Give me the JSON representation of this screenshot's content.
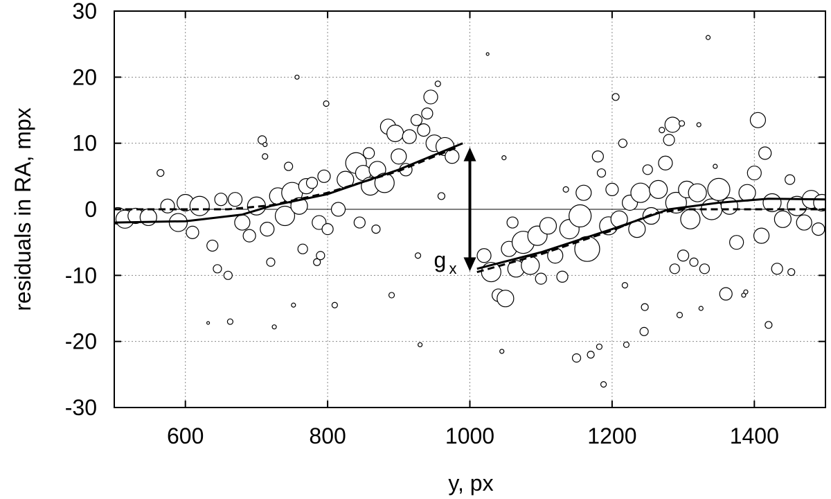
{
  "chart_data": {
    "type": "scatter",
    "title": "",
    "xlabel": "y, px",
    "ylabel": "residuals in RA, mpx",
    "xlim": [
      500,
      1500
    ],
    "ylim": [
      -30,
      30
    ],
    "x_ticks": [
      600,
      800,
      1000,
      1200,
      1400
    ],
    "y_ticks": [
      -30,
      -20,
      -10,
      0,
      10,
      20,
      30
    ],
    "x_tick_labels": [
      "600",
      "800",
      "1000",
      "1200",
      "1400"
    ],
    "y_tick_labels": [
      "-30",
      "-20",
      "-10",
      "0",
      "10",
      "20",
      "30"
    ],
    "grid": true,
    "annotation": {
      "text": "g",
      "subscript": "x",
      "arrow_x": 1000,
      "arrow_from": 10,
      "arrow_to": -10
    },
    "fit_solid": [
      {
        "x": 500,
        "y": -2.0
      },
      {
        "x": 600,
        "y": -1.8
      },
      {
        "x": 680,
        "y": -0.8
      },
      {
        "x": 720,
        "y": 0.5
      },
      {
        "x": 800,
        "y": 2.3
      },
      {
        "x": 900,
        "y": 6.0
      },
      {
        "x": 990,
        "y": 10.0
      },
      {
        "x": 1010,
        "y": -9.0
      },
      {
        "x": 1100,
        "y": -6.5
      },
      {
        "x": 1200,
        "y": -3.0
      },
      {
        "x": 1280,
        "y": 0.0
      },
      {
        "x": 1350,
        "y": 1.0
      },
      {
        "x": 1420,
        "y": 1.6
      },
      {
        "x": 1500,
        "y": 1.5
      }
    ],
    "fit_dashed": [
      {
        "x": 500,
        "y": 0.0
      },
      {
        "x": 660,
        "y": 0.0
      },
      {
        "x": 720,
        "y": 0.6
      },
      {
        "x": 800,
        "y": 2.5
      },
      {
        "x": 900,
        "y": 5.8
      },
      {
        "x": 980,
        "y": 9.3
      },
      {
        "x": 1010,
        "y": -9.5
      },
      {
        "x": 1100,
        "y": -6.8
      },
      {
        "x": 1200,
        "y": -3.2
      },
      {
        "x": 1260,
        "y": -0.6
      },
      {
        "x": 1300,
        "y": 0.0
      },
      {
        "x": 1500,
        "y": 0.0
      }
    ],
    "points": [
      {
        "x": 505,
        "y": -1,
        "w": 12
      },
      {
        "x": 515,
        "y": -1.5,
        "w": 13
      },
      {
        "x": 530,
        "y": -1,
        "w": 11
      },
      {
        "x": 548,
        "y": -1.2,
        "w": 12
      },
      {
        "x": 565,
        "y": 5.5,
        "w": 5
      },
      {
        "x": 575,
        "y": 0.5,
        "w": 10
      },
      {
        "x": 590,
        "y": -2,
        "w": 13
      },
      {
        "x": 600,
        "y": 1,
        "w": 12
      },
      {
        "x": 610,
        "y": -3.5,
        "w": 9
      },
      {
        "x": 620,
        "y": 0.5,
        "w": 14
      },
      {
        "x": 632,
        "y": -17.2,
        "w": 2
      },
      {
        "x": 638,
        "y": -5.5,
        "w": 8
      },
      {
        "x": 645,
        "y": -9,
        "w": 6
      },
      {
        "x": 650,
        "y": 1.5,
        "w": 9
      },
      {
        "x": 660,
        "y": -10,
        "w": 6
      },
      {
        "x": 663,
        "y": -17,
        "w": 4
      },
      {
        "x": 670,
        "y": 1.5,
        "w": 10
      },
      {
        "x": 680,
        "y": -2,
        "w": 11
      },
      {
        "x": 690,
        "y": -4,
        "w": 9
      },
      {
        "x": 700,
        "y": 0.5,
        "w": 13
      },
      {
        "x": 708,
        "y": 10.5,
        "w": 6
      },
      {
        "x": 712,
        "y": 8,
        "w": 4
      },
      {
        "x": 712,
        "y": 9.8,
        "w": 3
      },
      {
        "x": 715,
        "y": -3,
        "w": 10
      },
      {
        "x": 720,
        "y": -8,
        "w": 6
      },
      {
        "x": 725,
        "y": -17.8,
        "w": 3
      },
      {
        "x": 730,
        "y": 2,
        "w": 12
      },
      {
        "x": 740,
        "y": -1,
        "w": 14
      },
      {
        "x": 745,
        "y": 6.5,
        "w": 6
      },
      {
        "x": 750,
        "y": 2.5,
        "w": 15
      },
      {
        "x": 752,
        "y": -14.5,
        "w": 3
      },
      {
        "x": 757,
        "y": 20,
        "w": 3
      },
      {
        "x": 760,
        "y": 0.5,
        "w": 12
      },
      {
        "x": 765,
        "y": -6,
        "w": 7
      },
      {
        "x": 770,
        "y": 3.5,
        "w": 11
      },
      {
        "x": 778,
        "y": 4,
        "w": 8
      },
      {
        "x": 785,
        "y": -8,
        "w": 5
      },
      {
        "x": 788,
        "y": -2,
        "w": 10
      },
      {
        "x": 790,
        "y": -7,
        "w": 6
      },
      {
        "x": 795,
        "y": 5,
        "w": 9
      },
      {
        "x": 798,
        "y": 16,
        "w": 4
      },
      {
        "x": 800,
        "y": -3,
        "w": 8
      },
      {
        "x": 810,
        "y": -14.5,
        "w": 4
      },
      {
        "x": 815,
        "y": 0,
        "w": 10
      },
      {
        "x": 825,
        "y": 4.5,
        "w": 12
      },
      {
        "x": 840,
        "y": 7,
        "w": 15
      },
      {
        "x": 845,
        "y": -2,
        "w": 8
      },
      {
        "x": 850,
        "y": 5.5,
        "w": 11
      },
      {
        "x": 858,
        "y": 8.5,
        "w": 8
      },
      {
        "x": 860,
        "y": 3.5,
        "w": 13
      },
      {
        "x": 868,
        "y": -3,
        "w": 6
      },
      {
        "x": 870,
        "y": 6,
        "w": 12
      },
      {
        "x": 880,
        "y": 4,
        "w": 14
      },
      {
        "x": 885,
        "y": 12.5,
        "w": 11
      },
      {
        "x": 890,
        "y": -13,
        "w": 4
      },
      {
        "x": 895,
        "y": 11.5,
        "w": 12
      },
      {
        "x": 900,
        "y": 8,
        "w": 11
      },
      {
        "x": 910,
        "y": 6,
        "w": 9
      },
      {
        "x": 915,
        "y": 11,
        "w": 10
      },
      {
        "x": 925,
        "y": 13.5,
        "w": 8
      },
      {
        "x": 927,
        "y": -7,
        "w": 4
      },
      {
        "x": 930,
        "y": -20.5,
        "w": 3
      },
      {
        "x": 935,
        "y": 12,
        "w": 9
      },
      {
        "x": 940,
        "y": 14.5,
        "w": 8
      },
      {
        "x": 945,
        "y": 17,
        "w": 10
      },
      {
        "x": 950,
        "y": 10,
        "w": 12
      },
      {
        "x": 955,
        "y": 19,
        "w": 4
      },
      {
        "x": 960,
        "y": 2,
        "w": 5
      },
      {
        "x": 965,
        "y": 9.5,
        "w": 13
      },
      {
        "x": 975,
        "y": 8,
        "w": 10
      },
      {
        "x": 1020,
        "y": -7,
        "w": 10
      },
      {
        "x": 1025,
        "y": 23.5,
        "w": 2
      },
      {
        "x": 1030,
        "y": -9.5,
        "w": 14
      },
      {
        "x": 1040,
        "y": -13,
        "w": 9
      },
      {
        "x": 1045,
        "y": -21.5,
        "w": 3
      },
      {
        "x": 1048,
        "y": 7.8,
        "w": 3
      },
      {
        "x": 1050,
        "y": -13.5,
        "w": 12
      },
      {
        "x": 1055,
        "y": -6,
        "w": 11
      },
      {
        "x": 1060,
        "y": -2,
        "w": 8
      },
      {
        "x": 1065,
        "y": -9,
        "w": 12
      },
      {
        "x": 1075,
        "y": -5,
        "w": 16
      },
      {
        "x": 1085,
        "y": -8.5,
        "w": 13
      },
      {
        "x": 1095,
        "y": -4,
        "w": 14
      },
      {
        "x": 1100,
        "y": -10.5,
        "w": 8
      },
      {
        "x": 1110,
        "y": -2.5,
        "w": 12
      },
      {
        "x": 1120,
        "y": -7,
        "w": 11
      },
      {
        "x": 1130,
        "y": -10.2,
        "w": 8
      },
      {
        "x": 1135,
        "y": 3,
        "w": 4
      },
      {
        "x": 1140,
        "y": -3,
        "w": 14
      },
      {
        "x": 1150,
        "y": -22.5,
        "w": 6
      },
      {
        "x": 1155,
        "y": -1,
        "w": 16
      },
      {
        "x": 1160,
        "y": 2.5,
        "w": 11
      },
      {
        "x": 1165,
        "y": -6,
        "w": 18
      },
      {
        "x": 1170,
        "y": -22,
        "w": 5
      },
      {
        "x": 1180,
        "y": 8,
        "w": 8
      },
      {
        "x": 1182,
        "y": -20.8,
        "w": 4
      },
      {
        "x": 1185,
        "y": 5.5,
        "w": 6
      },
      {
        "x": 1188,
        "y": -26.5,
        "w": 4
      },
      {
        "x": 1195,
        "y": -2.5,
        "w": 13
      },
      {
        "x": 1200,
        "y": 3,
        "w": 9
      },
      {
        "x": 1205,
        "y": 17,
        "w": 5
      },
      {
        "x": 1210,
        "y": -1.5,
        "w": 12
      },
      {
        "x": 1215,
        "y": 10,
        "w": 6
      },
      {
        "x": 1218,
        "y": -11.5,
        "w": 4
      },
      {
        "x": 1220,
        "y": -20.5,
        "w": 4
      },
      {
        "x": 1225,
        "y": 1,
        "w": 11
      },
      {
        "x": 1235,
        "y": -3,
        "w": 12
      },
      {
        "x": 1240,
        "y": 2.5,
        "w": 14
      },
      {
        "x": 1245,
        "y": -18.5,
        "w": 6
      },
      {
        "x": 1246,
        "y": -14.8,
        "w": 5
      },
      {
        "x": 1250,
        "y": 6,
        "w": 7
      },
      {
        "x": 1255,
        "y": -1,
        "w": 12
      },
      {
        "x": 1265,
        "y": 3,
        "w": 13
      },
      {
        "x": 1270,
        "y": 12,
        "w": 4
      },
      {
        "x": 1275,
        "y": 7,
        "w": 10
      },
      {
        "x": 1280,
        "y": 10.5,
        "w": 8
      },
      {
        "x": 1285,
        "y": 12.8,
        "w": 11
      },
      {
        "x": 1288,
        "y": -9,
        "w": 7
      },
      {
        "x": 1290,
        "y": 1,
        "w": 15
      },
      {
        "x": 1295,
        "y": -16,
        "w": 4
      },
      {
        "x": 1298,
        "y": 13,
        "w": 4
      },
      {
        "x": 1300,
        "y": -7,
        "w": 8
      },
      {
        "x": 1305,
        "y": 3,
        "w": 12
      },
      {
        "x": 1310,
        "y": -1.5,
        "w": 14
      },
      {
        "x": 1315,
        "y": -8,
        "w": 6
      },
      {
        "x": 1320,
        "y": 2.5,
        "w": 13
      },
      {
        "x": 1322,
        "y": 12.8,
        "w": 3
      },
      {
        "x": 1325,
        "y": -15,
        "w": 3
      },
      {
        "x": 1330,
        "y": -9,
        "w": 7
      },
      {
        "x": 1335,
        "y": 26,
        "w": 3
      },
      {
        "x": 1340,
        "y": 0,
        "w": 15
      },
      {
        "x": 1345,
        "y": 6.5,
        "w": 3
      },
      {
        "x": 1350,
        "y": 3,
        "w": 16
      },
      {
        "x": 1360,
        "y": -12.8,
        "w": 9
      },
      {
        "x": 1365,
        "y": 0.5,
        "w": 12
      },
      {
        "x": 1375,
        "y": -5,
        "w": 10
      },
      {
        "x": 1385,
        "y": -13,
        "w": 3
      },
      {
        "x": 1388,
        "y": -12.5,
        "w": 3
      },
      {
        "x": 1390,
        "y": 2.5,
        "w": 12
      },
      {
        "x": 1400,
        "y": 5.5,
        "w": 10
      },
      {
        "x": 1405,
        "y": 13.5,
        "w": 11
      },
      {
        "x": 1410,
        "y": -4,
        "w": 11
      },
      {
        "x": 1415,
        "y": 8.5,
        "w": 9
      },
      {
        "x": 1420,
        "y": -17.5,
        "w": 5
      },
      {
        "x": 1425,
        "y": 1,
        "w": 13
      },
      {
        "x": 1432,
        "y": -9,
        "w": 8
      },
      {
        "x": 1440,
        "y": -1.5,
        "w": 12
      },
      {
        "x": 1450,
        "y": 4.5,
        "w": 7
      },
      {
        "x": 1452,
        "y": -9.5,
        "w": 5
      },
      {
        "x": 1460,
        "y": 0.5,
        "w": 14
      },
      {
        "x": 1470,
        "y": -2,
        "w": 11
      },
      {
        "x": 1480,
        "y": 1.5,
        "w": 13
      },
      {
        "x": 1490,
        "y": -3,
        "w": 9
      },
      {
        "x": 1495,
        "y": 1,
        "w": 12
      }
    ]
  }
}
